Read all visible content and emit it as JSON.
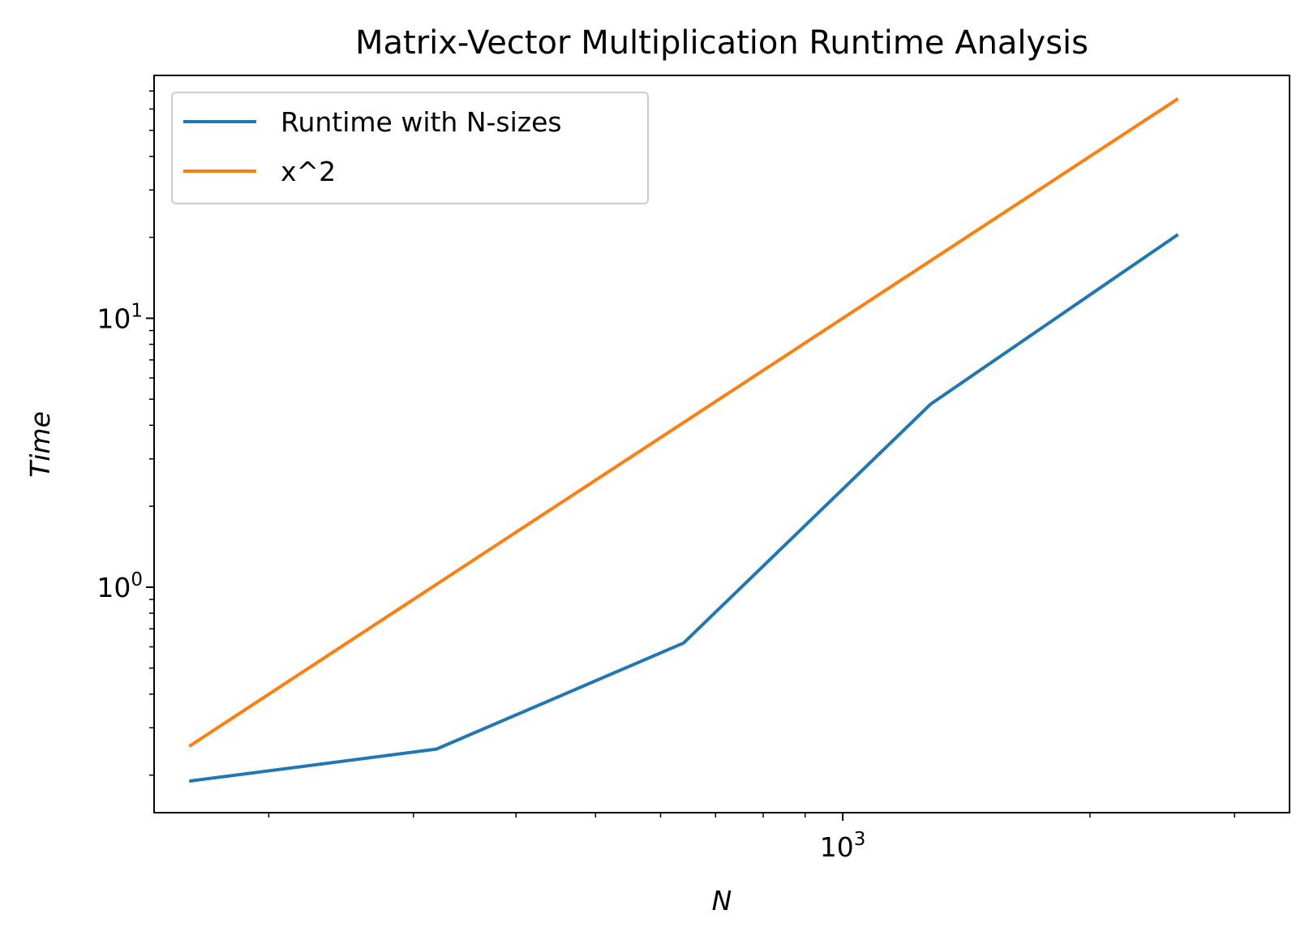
{
  "chart_data": {
    "type": "line",
    "title": "Matrix-Vector Multiplication Runtime Analysis",
    "xlabel": "N",
    "ylabel": "Time",
    "xscale": "log",
    "yscale": "log",
    "xlim": [
      145,
      3500
    ],
    "ylim": [
      0.145,
      80
    ],
    "x": [
      160,
      320,
      640,
      1280,
      2560
    ],
    "series": [
      {
        "name": "Runtime with N-sizes",
        "color": "#1f77b4",
        "values": [
          0.19,
          0.25,
          0.62,
          4.8,
          20.5
        ]
      },
      {
        "name": "x^2",
        "color": "#ff7f0e",
        "values": [
          0.256,
          1.024,
          4.096,
          16.384,
          65.536
        ]
      }
    ],
    "xticks": [
      {
        "base": "10",
        "exp": "3",
        "value": 1000
      }
    ],
    "yticks": [
      {
        "base": "10",
        "exp": "0",
        "value": 1
      },
      {
        "base": "10",
        "exp": "1",
        "value": 10
      }
    ],
    "legend_position": "upper-left",
    "grid": false
  }
}
